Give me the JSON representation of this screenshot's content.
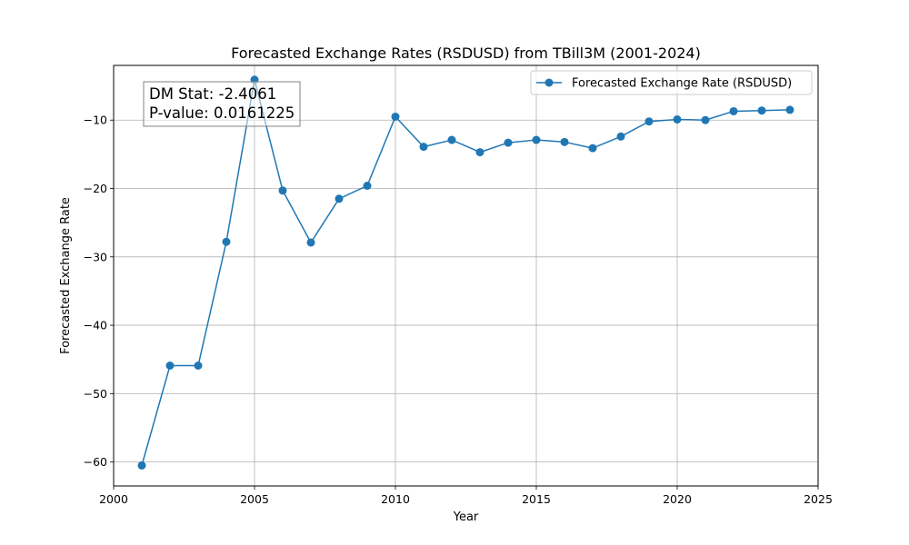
{
  "chart_data": {
    "type": "line",
    "title": "Forecasted Exchange Rates (RSDUSD) from TBill3M (2001-2024)",
    "xlabel": "Year",
    "ylabel": "Forecasted Exchange Rate",
    "xlim": [
      2000,
      2025
    ],
    "ylim": [
      -63.5,
      -2
    ],
    "xticks": [
      2000,
      2005,
      2010,
      2015,
      2020,
      2025
    ],
    "yticks": [
      -60,
      -50,
      -40,
      -30,
      -20,
      -10
    ],
    "grid": true,
    "legend_position": "top-right",
    "series": [
      {
        "name": "Forecasted Exchange Rate (RSDUSD)",
        "color": "#1f77b4",
        "x": [
          2001,
          2002,
          2003,
          2004,
          2005,
          2006,
          2007,
          2008,
          2009,
          2010,
          2011,
          2012,
          2013,
          2014,
          2015,
          2016,
          2017,
          2018,
          2019,
          2020,
          2021,
          2022,
          2023,
          2024
        ],
        "y": [
          -60.5,
          -45.9,
          -45.9,
          -27.8,
          -4.1,
          -20.3,
          -27.9,
          -21.5,
          -19.6,
          -9.5,
          -13.9,
          -12.9,
          -14.7,
          -13.3,
          -12.9,
          -13.2,
          -14.1,
          -12.4,
          -10.2,
          -9.9,
          -10.0,
          -8.7,
          -8.6,
          -8.5
        ]
      }
    ],
    "annotation": {
      "lines": [
        "DM Stat: -2.4061",
        "P-value: 0.0161225"
      ]
    }
  }
}
